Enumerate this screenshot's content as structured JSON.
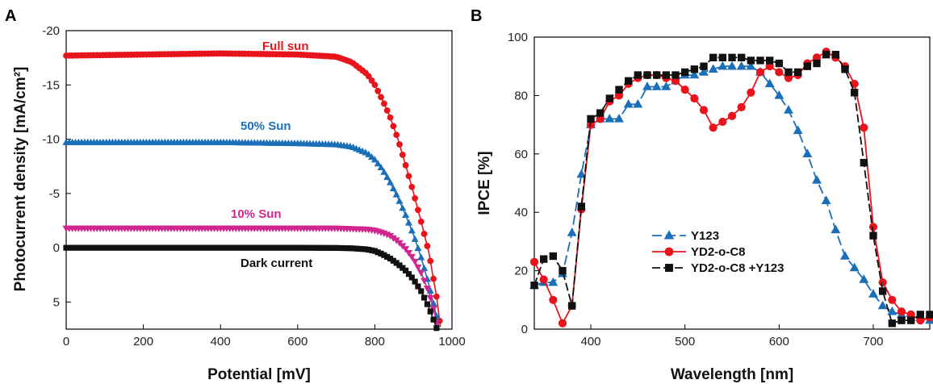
{
  "chart_data": [
    {
      "panel_label": "A",
      "type": "line",
      "xlabel": "Potential [mV]",
      "ylabel": "Photocurrent density [mA/cm²]",
      "xlim": [
        0,
        1000
      ],
      "ylim": [
        7.5,
        -20
      ],
      "x_ticks": [
        "0",
        "200",
        "400",
        "600",
        "800",
        "1000"
      ],
      "y_ticks": [
        "-20",
        "-15",
        "-10",
        "-5",
        "0",
        "5"
      ],
      "grid": false,
      "series": [
        {
          "name": "Full sun",
          "color": "#e8141c",
          "marker": "circle",
          "jsc": -17.8,
          "x": [
            0,
            200,
            400,
            600,
            700,
            740,
            780,
            800,
            820,
            840,
            860,
            880,
            900,
            920,
            940,
            960,
            970
          ],
          "y": [
            -17.7,
            -17.8,
            -17.9,
            -17.8,
            -17.6,
            -17.1,
            -16.0,
            -15.0,
            -13.6,
            -12.0,
            -10.0,
            -7.6,
            -5.1,
            -2.4,
            0.4,
            4.5,
            7.3
          ]
        },
        {
          "name": "50% Sun",
          "color": "#1b6fb8",
          "marker": "triangle-up",
          "jsc": -9.7,
          "x": [
            0,
            200,
            400,
            600,
            700,
            740,
            780,
            800,
            820,
            840,
            860,
            880,
            900,
            920,
            940,
            960,
            967
          ],
          "y": [
            -9.7,
            -9.7,
            -9.7,
            -9.6,
            -9.5,
            -9.3,
            -8.7,
            -8.1,
            -7.2,
            -6.0,
            -4.6,
            -3.0,
            -1.2,
            0.9,
            3.4,
            6.3,
            7.5
          ]
        },
        {
          "name": "10% Sun",
          "color": "#d0248f",
          "marker": "triangle-down",
          "jsc": -1.8,
          "x": [
            0,
            200,
            400,
            600,
            700,
            740,
            780,
            800,
            820,
            840,
            860,
            880,
            900,
            920,
            940,
            955,
            962
          ],
          "y": [
            -1.8,
            -1.8,
            -1.8,
            -1.8,
            -1.8,
            -1.75,
            -1.7,
            -1.6,
            -1.4,
            -1.1,
            -0.6,
            0.1,
            1.0,
            2.3,
            4.1,
            6.0,
            7.3
          ]
        },
        {
          "name": "Dark current",
          "color": "#111111",
          "marker": "square",
          "jsc": 0,
          "x": [
            0,
            200,
            400,
            600,
            700,
            740,
            780,
            800,
            820,
            840,
            860,
            880,
            900,
            920,
            940,
            955,
            960
          ],
          "y": [
            0,
            0,
            0,
            0,
            0.02,
            0.05,
            0.15,
            0.3,
            0.6,
            1.0,
            1.5,
            2.1,
            2.9,
            4.0,
            5.5,
            6.9,
            7.4
          ]
        }
      ],
      "annotations": [
        "Full sun",
        "50% Sun",
        "10% Sun",
        "Dark current"
      ]
    },
    {
      "panel_label": "B",
      "type": "line",
      "xlabel": "Wavelength [nm]",
      "ylabel": "IPCE [%]",
      "xlim": [
        340,
        760
      ],
      "ylim": [
        0,
        100
      ],
      "x_ticks": [
        "400",
        "500",
        "600",
        "700"
      ],
      "y_ticks": [
        "0",
        "20",
        "40",
        "60",
        "80",
        "100"
      ],
      "grid": false,
      "legend_position": "lower-left",
      "series": [
        {
          "name": "Y123",
          "color": "#1b6fb8",
          "marker": "triangle-up",
          "x": [
            340,
            350,
            360,
            370,
            380,
            390,
            400,
            410,
            420,
            430,
            440,
            450,
            460,
            470,
            480,
            490,
            500,
            510,
            520,
            530,
            540,
            550,
            560,
            570,
            580,
            590,
            600,
            610,
            620,
            630,
            640,
            650,
            660,
            670,
            680,
            690,
            700,
            710,
            720,
            730,
            740,
            750,
            760
          ],
          "y": [
            15,
            16,
            16,
            19,
            33,
            53,
            70,
            72,
            72,
            72,
            77,
            77,
            83,
            83,
            83,
            85,
            87,
            87,
            88,
            89,
            90,
            90,
            90,
            90,
            88,
            84,
            80,
            75,
            68,
            60,
            51,
            44,
            34,
            25,
            21,
            17,
            12,
            8,
            6,
            5,
            4,
            4,
            3
          ]
        },
        {
          "name": "YD2-o-C8",
          "color": "#e8141c",
          "marker": "circle",
          "x": [
            340,
            350,
            360,
            370,
            380,
            390,
            400,
            410,
            420,
            430,
            440,
            450,
            460,
            470,
            480,
            490,
            500,
            510,
            520,
            530,
            540,
            550,
            560,
            570,
            580,
            590,
            600,
            610,
            620,
            630,
            640,
            650,
            660,
            670,
            680,
            690,
            700,
            710,
            720,
            730,
            740,
            750,
            760
          ],
          "y": [
            23,
            17,
            10,
            2,
            8,
            41,
            70,
            72,
            78,
            80,
            84,
            86,
            87,
            87,
            86,
            85,
            82,
            79,
            75,
            69,
            71,
            73,
            76,
            81,
            88,
            90,
            88,
            86,
            87,
            91,
            93,
            95,
            93,
            90,
            84,
            69,
            35,
            16,
            10,
            6,
            5,
            3,
            4
          ]
        },
        {
          "name": "YD2-o-C8 +Y123",
          "color": "#111111",
          "marker": "square",
          "x": [
            340,
            350,
            360,
            370,
            380,
            390,
            400,
            410,
            420,
            430,
            440,
            450,
            460,
            470,
            480,
            490,
            500,
            510,
            520,
            530,
            540,
            550,
            560,
            570,
            580,
            590,
            600,
            610,
            620,
            630,
            640,
            650,
            660,
            670,
            680,
            690,
            700,
            710,
            720,
            730,
            740,
            750,
            760
          ],
          "y": [
            15,
            24,
            25,
            20,
            8,
            42,
            72,
            74,
            79,
            82,
            85,
            87,
            87,
            87,
            87,
            87,
            88,
            89,
            90,
            93,
            93,
            93,
            93,
            92,
            92,
            92,
            91,
            88,
            88,
            90,
            91,
            94,
            94,
            89,
            81,
            57,
            32,
            13,
            2,
            3,
            3,
            5,
            5
          ]
        }
      ]
    }
  ]
}
